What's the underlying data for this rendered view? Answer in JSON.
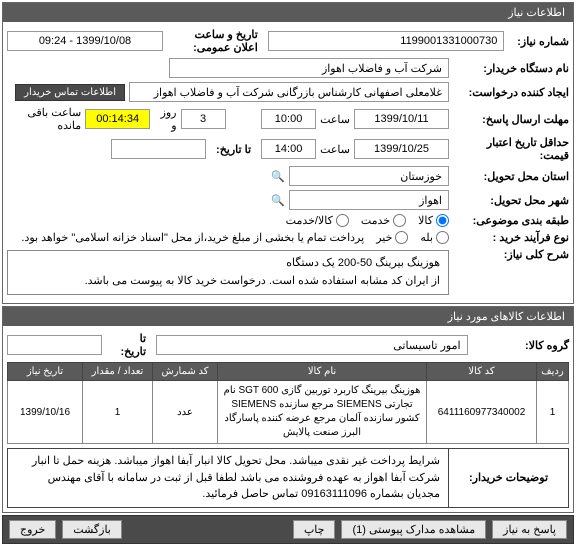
{
  "panel1": {
    "title": "اطلاعات نیاز",
    "fields": {
      "need_no_label": "شماره نیاز:",
      "need_no": "1199001331000730",
      "announce_label": "تاریخ و ساعت اعلان عمومی:",
      "announce_val": "1399/10/08 - 09:24",
      "buyer_org_label": "نام دستگاه خریدار:",
      "buyer_org": "شرکت آب و فاضلاب اهواز",
      "creator_label": "ایجاد کننده درخواست:",
      "creator": "غلامعلی اصفهانی کارشناس بازرگانی شرکت آب و فاضلاب اهواز",
      "contact_btn": "اطلاعات تماس خریدار",
      "resp_deadline_label": "مهلت ارسال پاسخ:",
      "resp_date": "1399/10/11",
      "hour_label": "ساعت",
      "resp_time": "10:00",
      "days_left": "3",
      "days_word": "روز و",
      "timer": "00:14:34",
      "remain_word": "ساعت باقی مانده",
      "price_valid_label": "حداقل تاریخ اعتبار قیمت:",
      "price_date": "1399/10/25",
      "price_time": "14:00",
      "to_date_label": "تا تاریخ:",
      "deliver_prov_label": "استان محل تحویل:",
      "deliver_prov": "خوزستان",
      "deliver_city_label": "شهر محل تحویل:",
      "deliver_city": "اهواز",
      "topic_label": "طبقه بندی موضوعی:",
      "opt_goods": "کالا",
      "opt_service": "خدمت",
      "opt_both": "کالا/خدمت",
      "buy_proc_label": "نوع فرآیند خرید :",
      "pay_all": "پرداخت تمام یا بخشی از مبلغ خرید،از محل \"اسناد خزانه اسلامی\" خواهد بود.",
      "yes": "بله",
      "no": "خیر"
    }
  },
  "summary": {
    "label": "شرح کلی نیاز:",
    "line1": "هوزینگ بیرینگ 50-200    یک دستگاه",
    "line2": "از ایران کد مشابه استفاده شده است. درخواست خرید کالا به پیوست می باشد."
  },
  "panel2": {
    "title": "اطلاعات کالاهای مورد نیاز",
    "group_label": "گروه کالا:",
    "group_val": "امور تاسیساتی",
    "to_date_label": "تا تاریخ:",
    "cols": {
      "row": "ردیف",
      "code": "کد کالا",
      "name": "نام کالا",
      "count_code": "کد شمارش",
      "qty": "تعداد / مقدار",
      "need_date": "تاریخ نیاز"
    },
    "rows": [
      {
        "idx": "1",
        "code": "6411160977340002",
        "name": "هوزینگ بیرینگ کاربرد توربین گازی SGT 600 نام تجارتی SIEMENS مرجع سازنده SIEMENS کشور سازنده آلمان مرجع عرضه کننده پاسارگاد البرز صنعت پالایش",
        "count_code": "عدد",
        "qty": "1",
        "need_date": "1399/10/16"
      }
    ]
  },
  "buyer_notes": {
    "label": "توضیحات خریدار:",
    "text": "شرایط پرداخت غیر نقدی میباشد. محل تحویل کالا انبار آبفا اهواز میباشد. هزینه حمل تا  انبار شرکت آبفا اهواز به عهده فروشنده می باشد لطفا قبل از ثبت در سامانه با آقای مهندس مجدیان بشماره 09163111096 تماس حاصل فرمائید."
  },
  "footer": {
    "reply": "پاسخ به نیاز",
    "attach": "مشاهده مدارک پیوستی (1)",
    "print": "چاپ",
    "back": "بازگشت",
    "exit": "خروج"
  },
  "icon_glyph": "🔍"
}
